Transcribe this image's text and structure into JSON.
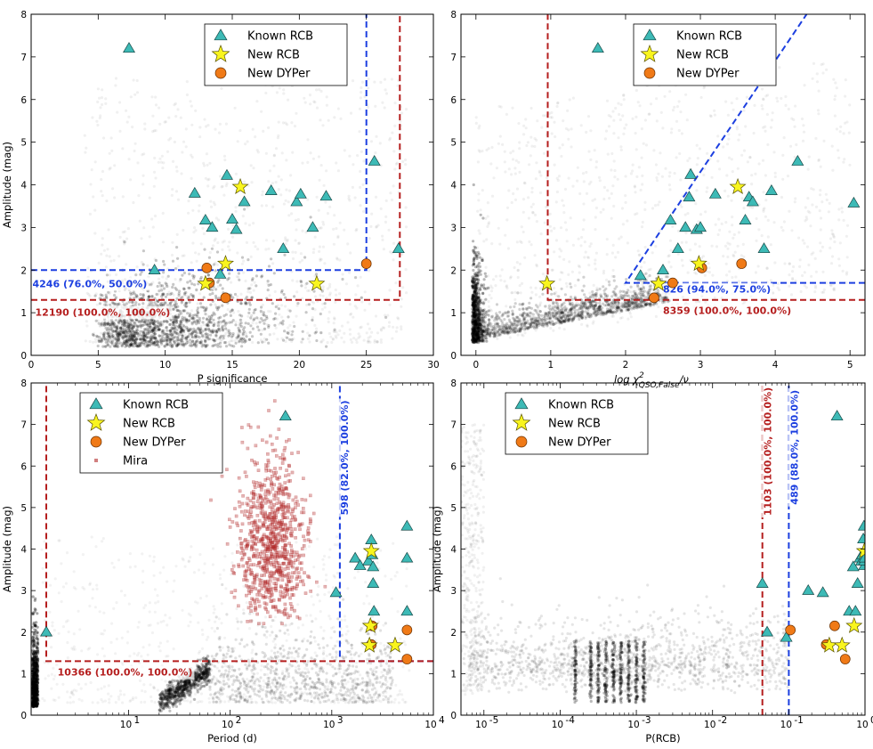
{
  "colors": {
    "known_rcb": "#3dbab6",
    "new_rcb": "#f9f51e",
    "new_dyper": "#f07a17",
    "mira": "#b22a2a",
    "blue_cut": "#1c3fe0",
    "red_cut": "#b51e1e",
    "background_points": "#000000"
  },
  "legend_labels": {
    "known_rcb": "Known RCB",
    "new_rcb": "New RCB",
    "new_dyper": "New DYPer",
    "mira": "Mira"
  },
  "chart_data": [
    {
      "id": "psig",
      "type": "scatter",
      "xscale": "linear",
      "xlim": [
        0,
        30
      ],
      "ylim": [
        0,
        8
      ],
      "xlabel": "P significance",
      "ylabel": "Amplitude (mag)",
      "xticks": [
        0,
        5,
        10,
        15,
        20,
        25,
        30
      ],
      "xtick_labels": [
        "0",
        "5",
        "10",
        "15",
        "20",
        "25",
        "30"
      ],
      "yticks": [
        0,
        1,
        2,
        3,
        4,
        5,
        6,
        7,
        8
      ],
      "ytick_labels": [
        "0",
        "1",
        "2",
        "3",
        "4",
        "5",
        "6",
        "7",
        "8"
      ],
      "legend": [
        "known_rcb",
        "new_rcb",
        "new_dyper"
      ],
      "background": {
        "x_center": 8,
        "x_sigma": 3.5,
        "x_min": 3.5,
        "x_max": 30,
        "y_floor": 0.2,
        "y_scale": 0.9,
        "n": 1400
      },
      "known_rcb": {
        "x": [
          7.3,
          12.2,
          13.0,
          13.5,
          14.1,
          14.6,
          15.0,
          15.3,
          15.9,
          17.9,
          18.8,
          19.8,
          20.1,
          21.0,
          22.0,
          25.6,
          27.4,
          9.2
        ],
        "y": [
          7.2,
          3.8,
          3.17,
          3.0,
          1.9,
          4.22,
          3.19,
          2.95,
          3.6,
          3.86,
          2.5,
          3.6,
          3.78,
          3.0,
          3.73,
          4.55,
          2.5,
          2.0
        ]
      },
      "new_rcb": {
        "x": [
          15.6,
          14.5,
          13.0,
          21.3
        ],
        "y": [
          3.95,
          2.15,
          1.68,
          1.68
        ]
      },
      "new_dyper": {
        "x": [
          13.1,
          25.0,
          13.3,
          14.5
        ],
        "y": [
          2.05,
          2.15,
          1.7,
          1.35
        ]
      },
      "cuts": [
        {
          "color": "blue",
          "points": [
            [
              0,
              2.0
            ],
            [
              25.0,
              2.0
            ],
            [
              25.0,
              8
            ]
          ]
        },
        {
          "color": "red",
          "points": [
            [
              0,
              1.3
            ],
            [
              27.5,
              1.3
            ],
            [
              27.5,
              8
            ]
          ]
        }
      ],
      "annotations": [
        {
          "text": "4246 (76.0%, 50.0%)",
          "color": "blue",
          "x": 0.1,
          "y": 1.6,
          "anchor": "start"
        },
        {
          "text": "12190 (100.0%, 100.0%)",
          "color": "red",
          "x": 0.3,
          "y": 0.93,
          "anchor": "start"
        }
      ]
    },
    {
      "id": "chi2",
      "type": "scatter",
      "xscale": "linear",
      "xlim": [
        -0.2,
        5.2
      ],
      "ylim": [
        0,
        8
      ],
      "xlabel_math": {
        "base": "log χ",
        "sup": "2",
        "sub": "QSO,False",
        "tail": "/ν"
      },
      "ylabel": "",
      "xticks": [
        0,
        1,
        2,
        3,
        4,
        5
      ],
      "xtick_labels": [
        "0",
        "1",
        "2",
        "3",
        "4",
        "5"
      ],
      "yticks": [
        0,
        1,
        2,
        3,
        4,
        5,
        6,
        7,
        8
      ],
      "ytick_labels": [
        "0",
        "1",
        "2",
        "3",
        "4",
        "5",
        "6",
        "7",
        "8"
      ],
      "legend": [
        "known_rcb",
        "new_rcb",
        "new_dyper"
      ],
      "background": {
        "x_center": 0.2,
        "x_sigma": 0.9,
        "x_min": -0.1,
        "x_max": 5.2,
        "y_floor": 0.25,
        "y_scale": 0.9,
        "n": 1500
      },
      "known_rcb": {
        "x": [
          1.63,
          2.2,
          2.5,
          2.6,
          2.7,
          2.8,
          2.85,
          2.87,
          2.95,
          3.0,
          3.2,
          3.6,
          3.65,
          3.7,
          3.85,
          3.95,
          4.3,
          5.05
        ],
        "y": [
          7.2,
          1.87,
          2.0,
          3.17,
          2.5,
          3.0,
          3.71,
          4.24,
          2.95,
          3.0,
          3.78,
          3.17,
          3.71,
          3.6,
          2.5,
          3.86,
          4.55,
          3.57
        ]
      },
      "new_rcb": {
        "x": [
          3.5,
          2.98,
          2.44,
          0.95
        ],
        "y": [
          3.95,
          2.15,
          1.68,
          1.68
        ]
      },
      "new_dyper": {
        "x": [
          3.02,
          3.55,
          2.63,
          2.38
        ],
        "y": [
          2.05,
          2.15,
          1.7,
          1.35
        ]
      },
      "cuts": [
        {
          "color": "blue",
          "points": [
            [
              5.2,
              1.7
            ],
            [
              2.0,
              1.7
            ],
            [
              4.42,
              8
            ]
          ]
        },
        {
          "color": "red",
          "points": [
            [
              5.2,
              1.3
            ],
            [
              0.96,
              1.3
            ],
            [
              0.96,
              8
            ]
          ]
        }
      ],
      "annotations": [
        {
          "text": "826 (94.0%, 75.0%)",
          "color": "blue",
          "x": 2.5,
          "y": 1.47,
          "anchor": "start"
        },
        {
          "text": "8359 (100.0%, 100.0%)",
          "color": "red",
          "x": 2.5,
          "y": 0.97,
          "anchor": "start"
        }
      ]
    },
    {
      "id": "period",
      "type": "scatter",
      "xscale": "log",
      "xlim": [
        1.1,
        10000
      ],
      "ylim": [
        0,
        8
      ],
      "xlabel": "Period (d)",
      "ylabel": "Amplitude (mag)",
      "xticks": [
        10,
        100,
        1000,
        10000
      ],
      "xtick_labels": [
        "10",
        "10",
        "10",
        "10"
      ],
      "xtick_exponents": [
        "1",
        "2",
        "3",
        "4"
      ],
      "yticks": [
        0,
        1,
        2,
        3,
        4,
        5,
        6,
        7,
        8
      ],
      "ytick_labels": [
        "0",
        "1",
        "2",
        "3",
        "4",
        "5",
        "6",
        "7",
        "8"
      ],
      "legend": [
        "known_rcb",
        "new_rcb",
        "new_dyper",
        "mira"
      ],
      "known_rcb": {
        "x": [
          1.55,
          350,
          1100,
          1700,
          1900,
          2300,
          2450,
          2500,
          2550,
          2600,
          5500,
          5500,
          5500,
          2550
        ],
        "y": [
          2.0,
          7.2,
          2.95,
          3.78,
          3.6,
          3.71,
          4.22,
          3.86,
          3.17,
          2.5,
          4.55,
          3.78,
          2.5,
          3.57
        ]
      },
      "new_rcb": {
        "x": [
          2450,
          2400,
          2350,
          4200
        ],
        "y": [
          3.95,
          2.15,
          1.68,
          1.68
        ]
      },
      "new_dyper": {
        "x": [
          5500,
          2500,
          5500,
          2450
        ],
        "y": [
          2.05,
          2.15,
          1.35,
          1.7
        ]
      },
      "mira": {
        "x_log_center": 2.4,
        "x_log_sigma": 0.16,
        "y_center": 4.0,
        "y_sigma": 1.2,
        "y_min": 2.2,
        "y_max": 7.9,
        "n": 900
      },
      "cuts": [
        {
          "color": "blue",
          "points": [
            [
              10000,
              1.3
            ],
            [
              1200,
              1.3
            ],
            [
              1200,
              8
            ]
          ]
        },
        {
          "color": "red",
          "points": [
            [
              10000,
              1.3
            ],
            [
              1.55,
              1.3
            ],
            [
              1.55,
              8
            ]
          ]
        }
      ],
      "annotations": [
        {
          "text": "10366 (100.0%, 100.0%)",
          "color": "red",
          "x": 2.0,
          "y": 0.95,
          "anchor": "start"
        },
        {
          "text": "598 (82.0%, 100.0%)",
          "color": "blue",
          "x": 1450,
          "y": 6.2,
          "anchor": "middle",
          "rotate": -90
        }
      ]
    },
    {
      "id": "prcb",
      "type": "scatter",
      "xscale": "log",
      "xlim": [
        5e-06,
        1
      ],
      "ylim": [
        0,
        8
      ],
      "xlabel": "P(RCB)",
      "ylabel": "Amplitude (mag)",
      "xticks": [
        1e-05,
        0.0001,
        0.001,
        0.01,
        0.1,
        1
      ],
      "xtick_labels": [
        "10",
        "10",
        "10",
        "10",
        "10",
        "10"
      ],
      "xtick_exponents": [
        "-5",
        "-4",
        "-3",
        "-2",
        "-1",
        "0"
      ],
      "yticks": [
        0,
        1,
        2,
        3,
        4,
        5,
        6,
        7,
        8
      ],
      "ytick_labels": [
        "0",
        "1",
        "2",
        "3",
        "4",
        "5",
        "6",
        "7",
        "8"
      ],
      "legend": [
        "known_rcb",
        "new_rcb",
        "new_dyper"
      ],
      "known_rcb": {
        "x": [
          0.43,
          0.045,
          0.052,
          0.093,
          0.18,
          0.28,
          0.62,
          0.7,
          0.75,
          0.8,
          0.86,
          0.9,
          0.92,
          0.95,
          0.97,
          0.98,
          0.98,
          0.99
        ],
        "y": [
          7.2,
          3.17,
          2.0,
          1.87,
          3.0,
          2.95,
          2.5,
          3.57,
          2.5,
          3.17,
          3.78,
          3.71,
          3.86,
          4.24,
          4.55,
          3.6,
          3.71,
          3.78
        ]
      },
      "new_rcb": {
        "x": [
          0.98,
          0.72,
          0.34,
          0.5
        ],
        "y": [
          3.95,
          2.15,
          1.68,
          1.68
        ]
      },
      "new_dyper": {
        "x": [
          0.105,
          0.4,
          0.31,
          0.55
        ],
        "y": [
          2.05,
          2.15,
          1.7,
          1.35
        ]
      },
      "cuts": [
        {
          "color": "red",
          "points": [
            [
              0.045,
              0
            ],
            [
              0.045,
              8
            ]
          ]
        },
        {
          "color": "blue",
          "points": [
            [
              0.1,
              0
            ],
            [
              0.1,
              8
            ]
          ]
        }
      ],
      "annotations": [
        {
          "text": "1103 (100.0%, 100.0%)",
          "color": "red",
          "x": 0.059,
          "y": 6.35,
          "anchor": "middle",
          "rotate": -90
        },
        {
          "text": "489 (88.0%, 100.0%)",
          "color": "blue",
          "x": 0.132,
          "y": 6.45,
          "anchor": "middle",
          "rotate": -90
        }
      ]
    }
  ]
}
